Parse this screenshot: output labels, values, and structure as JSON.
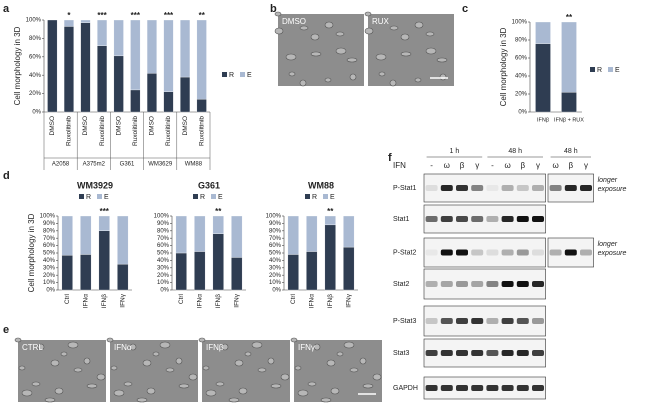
{
  "chart_data": [
    {
      "type": "bar",
      "stacked": true,
      "ylabel": "Cell morphology in 3D",
      "categories": [
        "DMSO",
        "Ruxolitinib",
        "DMSO",
        "Ruxolitinib",
        "DMSO",
        "Ruxolitinib",
        "DMSO",
        "Ruxolitinib",
        "DMSO",
        "Ruxolitinib"
      ],
      "groups": [
        "A2058",
        "A375m2",
        "G361",
        "WM3629",
        "WM88"
      ],
      "series": [
        {
          "name": "R",
          "color": "#2f3d52",
          "values": [
            100,
            93,
            97,
            72,
            61,
            24,
            42,
            22,
            38,
            14
          ]
        },
        {
          "name": "E",
          "color": "#a9b9d2",
          "values": [
            0,
            7,
            3,
            28,
            39,
            76,
            58,
            78,
            62,
            86
          ]
        }
      ],
      "significance": [
        null,
        "*",
        null,
        "***",
        null,
        "***",
        null,
        "***",
        null,
        "**"
      ],
      "ylim": [
        0,
        100
      ],
      "yticks": [
        {
          "value": 0,
          "label": "0%"
        },
        {
          "value": 20,
          "label": "20%"
        },
        {
          "value": 40,
          "label": "40%"
        },
        {
          "value": 60,
          "label": "60%"
        },
        {
          "value": 80,
          "label": "80%"
        },
        {
          "value": 100,
          "label": "100%"
        }
      ],
      "legend": "right"
    },
    {
      "type": "bar",
      "stacked": true,
      "ylabel": "Cell morphology in 3D",
      "categories": [
        "IFNβ",
        "IFNβ + RUX"
      ],
      "series": [
        {
          "name": "R",
          "color": "#2f3d52",
          "values": [
            76,
            22
          ]
        },
        {
          "name": "E",
          "color": "#a9b9d2",
          "values": [
            24,
            78
          ]
        }
      ],
      "significance": [
        null,
        "**"
      ],
      "ylim": [
        0,
        100
      ],
      "yticks": [
        {
          "value": 0,
          "label": "0%"
        },
        {
          "value": 20,
          "label": "20%"
        },
        {
          "value": 40,
          "label": "40%"
        },
        {
          "value": 60,
          "label": "60%"
        },
        {
          "value": 80,
          "label": "80%"
        },
        {
          "value": 100,
          "label": "100%"
        }
      ],
      "legend": "right"
    },
    {
      "type": "bar",
      "stacked": true,
      "title": "WM3929",
      "ylabel": "Cell morphology in 3D",
      "categories": [
        "Ctrl",
        "IFNα",
        "IFNβ",
        "IFNγ"
      ],
      "series": [
        {
          "name": "R",
          "color": "#2f3d52",
          "values": [
            47,
            48,
            80,
            35
          ]
        },
        {
          "name": "E",
          "color": "#a9b9d2",
          "values": [
            53,
            52,
            20,
            65
          ]
        }
      ],
      "significance": [
        null,
        null,
        "***",
        null
      ],
      "ylim": [
        0,
        100
      ],
      "yticks": [
        {
          "value": 0,
          "label": "0%"
        },
        {
          "value": 10,
          "label": "10%"
        },
        {
          "value": 20,
          "label": "20%"
        },
        {
          "value": 30,
          "label": "30%"
        },
        {
          "value": 40,
          "label": "40%"
        },
        {
          "value": 50,
          "label": "50%"
        },
        {
          "value": 60,
          "label": "60%"
        },
        {
          "value": 70,
          "label": "70%"
        },
        {
          "value": 80,
          "label": "80%"
        },
        {
          "value": 90,
          "label": "90%"
        },
        {
          "value": 100,
          "label": "100%"
        }
      ],
      "legend": "top"
    },
    {
      "type": "bar",
      "stacked": true,
      "title": "G361",
      "categories": [
        "Ctrl",
        "IFNα",
        "IFNβ",
        "IFNγ"
      ],
      "series": [
        {
          "name": "R",
          "color": "#2f3d52",
          "values": [
            50,
            52,
            76,
            44
          ]
        },
        {
          "name": "E",
          "color": "#a9b9d2",
          "values": [
            50,
            48,
            24,
            56
          ]
        }
      ],
      "significance": [
        null,
        null,
        "**",
        null
      ],
      "ylim": [
        0,
        100
      ],
      "yticks": [
        {
          "value": 0,
          "label": "0%"
        },
        {
          "value": 10,
          "label": "10%"
        },
        {
          "value": 20,
          "label": "20%"
        },
        {
          "value": 30,
          "label": "30%"
        },
        {
          "value": 40,
          "label": "40%"
        },
        {
          "value": 50,
          "label": "50%"
        },
        {
          "value": 60,
          "label": "60%"
        },
        {
          "value": 70,
          "label": "70%"
        },
        {
          "value": 80,
          "label": "80%"
        },
        {
          "value": 90,
          "label": "90%"
        },
        {
          "value": 100,
          "label": "100%"
        }
      ],
      "legend": "top"
    },
    {
      "type": "bar",
      "stacked": true,
      "title": "WM88",
      "categories": [
        "Ctrl",
        "IFNα",
        "IFNβ",
        "IFNγ"
      ],
      "series": [
        {
          "name": "R",
          "color": "#2f3d52",
          "values": [
            48,
            52,
            88,
            58
          ]
        },
        {
          "name": "E",
          "color": "#a9b9d2",
          "values": [
            52,
            48,
            12,
            42
          ]
        }
      ],
      "significance": [
        null,
        null,
        "**",
        null
      ],
      "ylim": [
        0,
        100
      ],
      "yticks": [
        {
          "value": 0,
          "label": "0%"
        },
        {
          "value": 10,
          "label": "10%"
        },
        {
          "value": 20,
          "label": "20%"
        },
        {
          "value": 30,
          "label": "30%"
        },
        {
          "value": 40,
          "label": "40%"
        },
        {
          "value": 50,
          "label": "50%"
        },
        {
          "value": 60,
          "label": "60%"
        },
        {
          "value": 70,
          "label": "70%"
        },
        {
          "value": 80,
          "label": "80%"
        },
        {
          "value": 90,
          "label": "90%"
        },
        {
          "value": 100,
          "label": "100%"
        }
      ],
      "legend": "top"
    }
  ],
  "figure": {
    "letters": [
      "a",
      "b",
      "c",
      "d",
      "e",
      "f"
    ],
    "b_images": [
      "DMSO",
      "RUX"
    ],
    "e_images": [
      "CTRL",
      "IFNα",
      "IFNβ",
      "IFNγ"
    ],
    "blot": {
      "treatment": "IFN",
      "lanes": [
        "-",
        "ω",
        "β",
        "γ",
        "-",
        "ω",
        "β",
        "γ",
        "ω",
        "β",
        "γ"
      ],
      "time_points": [
        "1 h",
        "48 h",
        "48 h"
      ],
      "rows": [
        {
          "name": "P-Stat1",
          "note": "longer exposure"
        },
        {
          "name": "Stat1"
        },
        {
          "name": "P-Stat2",
          "note": "longer exposure"
        },
        {
          "name": "Stat2"
        },
        {
          "name": "P-Stat3"
        },
        {
          "name": "Stat3"
        },
        {
          "name": "GAPDH"
        }
      ]
    }
  }
}
